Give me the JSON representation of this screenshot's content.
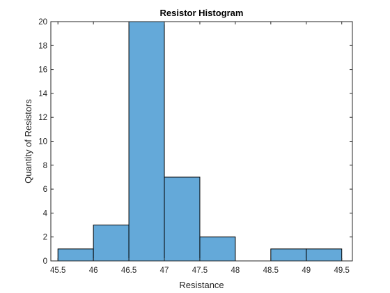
{
  "chart_data": {
    "type": "bar",
    "title": "Resistor Histogram",
    "xlabel": "Resistance",
    "ylabel": "Quantity of Resistors",
    "bin_edges": [
      45.5,
      46,
      46.5,
      47,
      47.5,
      48,
      48.5,
      49,
      49.5
    ],
    "values": [
      1,
      3,
      20,
      7,
      2,
      0,
      1,
      1
    ],
    "xlim": [
      45.4,
      49.65
    ],
    "ylim": [
      0,
      20
    ],
    "xticks": [
      45.5,
      46,
      46.5,
      47,
      47.5,
      48,
      48.5,
      49,
      49.5
    ],
    "xtick_labels": [
      "45.5",
      "46",
      "46.5",
      "47",
      "47.5",
      "48",
      "48.5",
      "49",
      "49.5"
    ],
    "yticks": [
      0,
      2,
      4,
      6,
      8,
      10,
      12,
      14,
      16,
      18,
      20
    ],
    "ytick_labels": [
      "0",
      "2",
      "4",
      "6",
      "8",
      "10",
      "12",
      "14",
      "16",
      "18",
      "20"
    ],
    "grid": false,
    "legend": "none",
    "colors": {
      "bar_fill": "#64a9d9",
      "bar_edge": "#000000",
      "axes": "#262626",
      "background": "#ffffff"
    }
  }
}
